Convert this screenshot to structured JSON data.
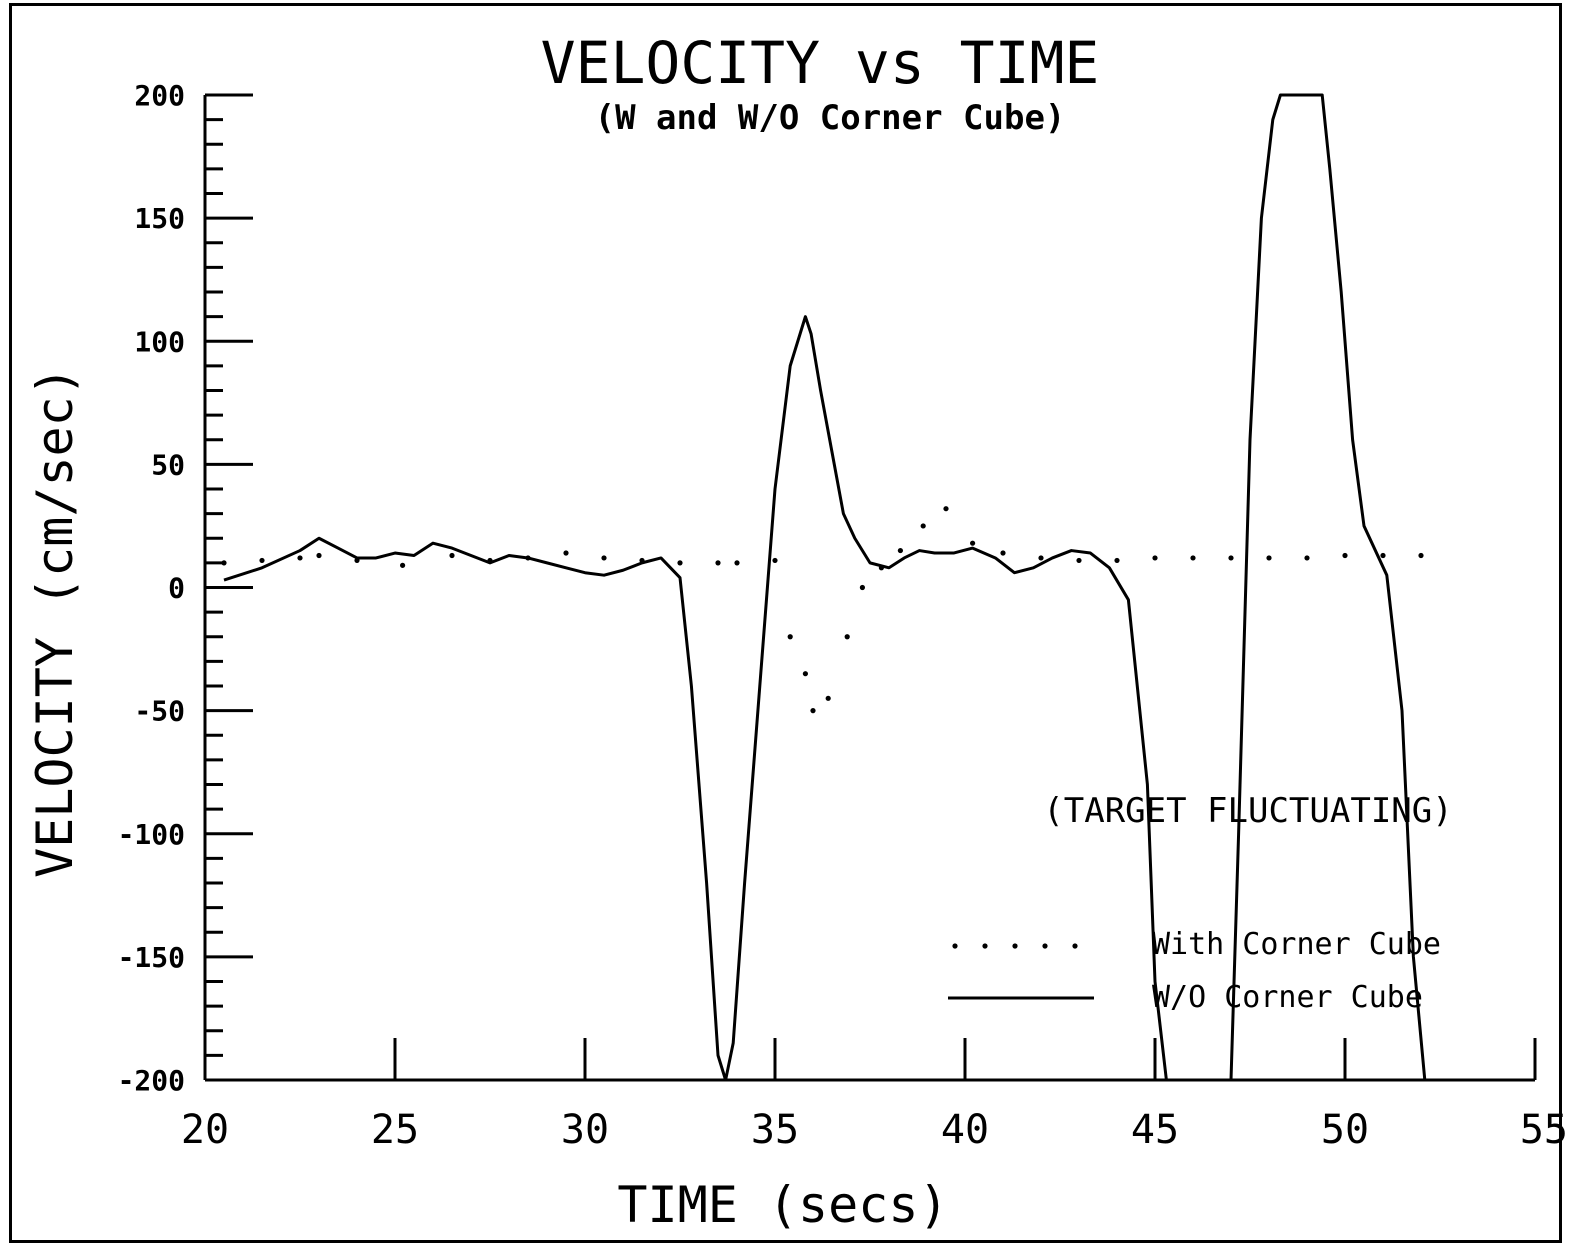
{
  "chart_data": {
    "type": "line",
    "title": "VELOCITY vs TIME",
    "subtitle": "(W and W/O Corner Cube)",
    "xlabel": "TIME (secs)",
    "ylabel": "VELOCITY (cm/sec)",
    "xlim": [
      20,
      55
    ],
    "ylim": [
      -200,
      200
    ],
    "x_ticks": [
      20,
      25,
      30,
      35,
      40,
      45,
      50,
      55
    ],
    "x_tick_labels": [
      "20",
      "25",
      "30",
      "35",
      "40",
      "45",
      "50",
      "55"
    ],
    "y_ticks": [
      200,
      150,
      100,
      50,
      0,
      -50,
      -100,
      -150,
      -200
    ],
    "y_tick_labels": [
      "200",
      "150",
      "100",
      "50",
      "0",
      "-50",
      "-100",
      "-150",
      "-200"
    ],
    "annotation": "(TARGET FLUCTUATING)",
    "legend_position": "bottom-right",
    "series": [
      {
        "name": "With Corner Cube",
        "style": "dotted",
        "x": [
          20.5,
          21.5,
          22.5,
          23.0,
          24.0,
          25.2,
          26.5,
          27.5,
          28.5,
          29.5,
          30.5,
          31.5,
          32.5,
          33.5,
          34.0,
          35.0,
          35.4,
          35.8,
          36.0,
          36.4,
          36.9,
          37.3,
          37.8,
          38.3,
          38.9,
          39.5,
          40.2,
          41.0,
          42.0,
          43.0,
          44.0,
          45.0,
          46.0,
          47.0,
          48.0,
          49.0,
          50.0,
          51.0,
          52.0
        ],
        "values": [
          10,
          11,
          12,
          13,
          11,
          9,
          13,
          11,
          12,
          14,
          12,
          11,
          10,
          10,
          10,
          11,
          -20,
          -35,
          -50,
          -45,
          -20,
          0,
          8,
          15,
          25,
          32,
          18,
          14,
          12,
          11,
          11,
          12,
          12,
          12,
          12,
          12,
          13,
          13,
          13
        ]
      },
      {
        "name": "W/O Corner Cube",
        "style": "solid",
        "x": [
          20.5,
          21.5,
          22.5,
          23.0,
          23.5,
          24.0,
          24.5,
          25.0,
          25.5,
          26.0,
          26.5,
          27.0,
          27.5,
          28.0,
          28.5,
          29.0,
          29.5,
          30.0,
          30.5,
          31.0,
          31.5,
          32.0,
          32.5,
          32.8,
          33.2,
          33.5,
          33.7,
          33.9,
          34.2,
          34.6,
          35.0,
          35.4,
          35.8,
          35.95,
          36.2,
          36.5,
          36.8,
          37.1,
          37.5,
          38.0,
          38.4,
          38.8,
          39.2,
          39.7,
          40.2,
          40.8,
          41.3,
          41.8,
          42.3,
          42.8,
          43.3,
          43.8,
          44.3,
          44.8,
          45.0,
          45.3,
          45.6,
          45.8,
          46.0,
          46.4,
          46.8,
          47.0,
          47.2,
          47.5,
          47.8,
          48.1,
          48.3,
          49.4,
          49.6,
          49.9,
          50.2,
          50.5,
          50.8,
          51.1,
          51.5,
          51.8,
          52.1,
          52.3
        ],
        "values": [
          3,
          8,
          15,
          20,
          16,
          12,
          12,
          14,
          13,
          18,
          16,
          13,
          10,
          13,
          12,
          10,
          8,
          6,
          5,
          7,
          10,
          12,
          4,
          -40,
          -120,
          -190,
          -200,
          -185,
          -120,
          -40,
          40,
          90,
          110,
          103,
          80,
          55,
          30,
          20,
          10,
          8,
          12,
          15,
          14,
          14,
          16,
          12,
          6,
          8,
          12,
          15,
          14,
          8,
          -5,
          -80,
          -160,
          -200,
          -200,
          -200,
          -200,
          -200,
          -200,
          -200,
          -100,
          60,
          150,
          190,
          200,
          200,
          170,
          120,
          60,
          25,
          15,
          5,
          -50,
          -150,
          -200,
          -200
        ]
      }
    ]
  }
}
